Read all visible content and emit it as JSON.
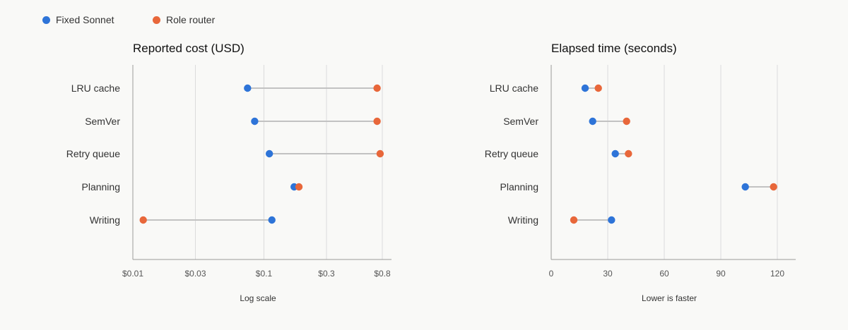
{
  "legend": [
    {
      "name": "Fixed Sonnet",
      "color": "#2e74d8"
    },
    {
      "name": "Role router",
      "color": "#e8673a"
    }
  ],
  "chart_data": [
    {
      "type": "dumbbell",
      "title": "Reported cost (USD)",
      "xlabel": "Log scale",
      "x_scale": "log",
      "xlim": [
        0.01,
        0.85
      ],
      "ticks": [
        0.01,
        0.03,
        0.1,
        0.3,
        0.8
      ],
      "tick_labels": [
        "$0.01",
        "$0.03",
        "$0.1",
        "$0.3",
        "$0.8"
      ],
      "grid": true,
      "categories": [
        "LRU cache",
        "SemVer",
        "Retry queue",
        "Planning",
        "Writing"
      ],
      "series": [
        {
          "name": "Fixed Sonnet",
          "values": [
            0.075,
            0.085,
            0.11,
            0.17,
            0.115
          ]
        },
        {
          "name": "Role router",
          "values": [
            0.73,
            0.73,
            0.77,
            0.185,
            0.012
          ]
        }
      ]
    },
    {
      "type": "dumbbell",
      "title": "Elapsed time (seconds)",
      "xlabel": "Lower is faster",
      "x_scale": "linear",
      "xlim": [
        0,
        130
      ],
      "ticks": [
        0,
        30,
        60,
        90,
        120
      ],
      "tick_labels": [
        "0",
        "30",
        "60",
        "90",
        "120"
      ],
      "grid": true,
      "categories": [
        "LRU cache",
        "SemVer",
        "Retry queue",
        "Planning",
        "Writing"
      ],
      "series": [
        {
          "name": "Fixed Sonnet",
          "values": [
            18,
            22,
            34,
            103,
            32
          ]
        },
        {
          "name": "Role router",
          "values": [
            25,
            40,
            41,
            118,
            12
          ]
        }
      ]
    }
  ]
}
